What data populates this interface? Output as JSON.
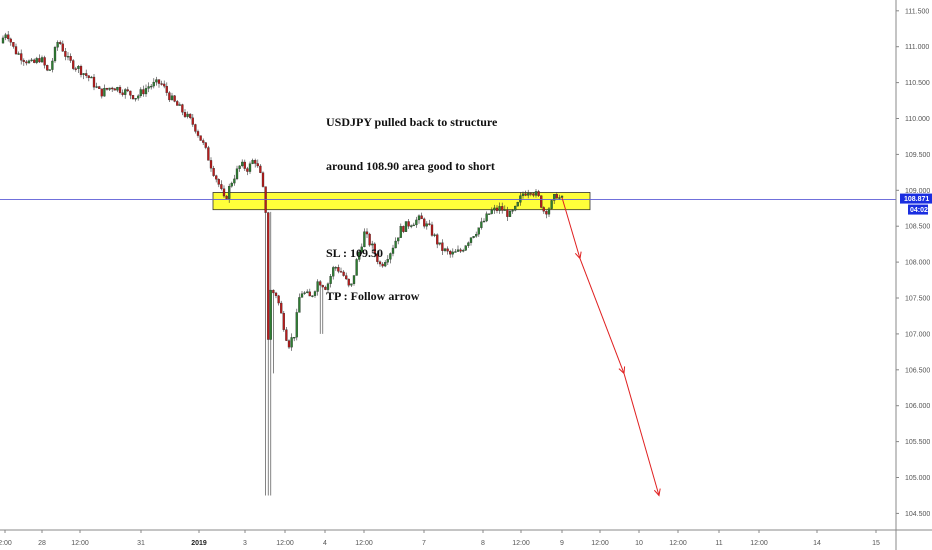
{
  "chart_data": {
    "type": "candlestick",
    "symbol": "USDJPY",
    "y_ticks": [
      "111.500",
      "111.000",
      "110.500",
      "110.000",
      "109.500",
      "109.000",
      "108.500",
      "108.000",
      "107.500",
      "107.000",
      "106.500",
      "106.000",
      "105.500",
      "105.000",
      "104.500"
    ],
    "ylim": [
      104.45,
      111.56
    ],
    "x_ticks": [
      {
        "label": "2:00",
        "bold": false
      },
      {
        "label": "28",
        "bold": false
      },
      {
        "label": "12:00",
        "bold": false
      },
      {
        "label": "31",
        "bold": false
      },
      {
        "label": "2019",
        "bold": true
      },
      {
        "label": "3",
        "bold": false
      },
      {
        "label": "12:00",
        "bold": false
      },
      {
        "label": "4",
        "bold": false
      },
      {
        "label": "12:00",
        "bold": false
      },
      {
        "label": "7",
        "bold": false
      },
      {
        "label": "8",
        "bold": false
      },
      {
        "label": "12:00",
        "bold": false
      },
      {
        "label": "9",
        "bold": false
      },
      {
        "label": "12:00",
        "bold": false
      },
      {
        "label": "10",
        "bold": false
      },
      {
        "label": "12:00",
        "bold": false
      },
      {
        "label": "11",
        "bold": false
      },
      {
        "label": "12:00",
        "bold": false
      },
      {
        "label": "14",
        "bold": false
      },
      {
        "label": "15",
        "bold": false
      }
    ],
    "current_price": {
      "value": 108.871,
      "label": "108.871",
      "countdown": "04:02"
    },
    "zone": {
      "low": 108.73,
      "high": 108.97
    },
    "approx_path": [
      {
        "t": 0,
        "p": 111.05
      },
      {
        "t": 6,
        "p": 111.22
      },
      {
        "t": 14,
        "p": 110.95
      },
      {
        "t": 22,
        "p": 110.85
      },
      {
        "t": 32,
        "p": 110.75
      },
      {
        "t": 40,
        "p": 110.85
      },
      {
        "t": 48,
        "p": 110.62
      },
      {
        "t": 58,
        "p": 111.1
      },
      {
        "t": 68,
        "p": 110.8
      },
      {
        "t": 78,
        "p": 110.7
      },
      {
        "t": 90,
        "p": 110.55
      },
      {
        "t": 100,
        "p": 110.35
      },
      {
        "t": 112,
        "p": 110.45
      },
      {
        "t": 124,
        "p": 110.38
      },
      {
        "t": 136,
        "p": 110.3
      },
      {
        "t": 148,
        "p": 110.45
      },
      {
        "t": 160,
        "p": 110.5
      },
      {
        "t": 172,
        "p": 110.25
      },
      {
        "t": 182,
        "p": 110.1
      },
      {
        "t": 194,
        "p": 109.9
      },
      {
        "t": 204,
        "p": 109.6
      },
      {
        "t": 212,
        "p": 109.3
      },
      {
        "t": 218,
        "p": 109.1
      },
      {
        "t": 224,
        "p": 108.85
      },
      {
        "t": 232,
        "p": 109.15
      },
      {
        "t": 240,
        "p": 109.35
      },
      {
        "t": 248,
        "p": 109.3
      },
      {
        "t": 254,
        "p": 109.45
      },
      {
        "t": 260,
        "p": 109.2
      },
      {
        "t": 264,
        "p": 108.9
      },
      {
        "t": 266,
        "p": 108.6
      },
      {
        "t": 267,
        "p": 106.7
      },
      {
        "t": 270,
        "p": 107.6
      },
      {
        "t": 276,
        "p": 107.55
      },
      {
        "t": 282,
        "p": 107.2
      },
      {
        "t": 288,
        "p": 106.85
      },
      {
        "t": 294,
        "p": 107.0
      },
      {
        "t": 300,
        "p": 107.6
      },
      {
        "t": 310,
        "p": 107.5
      },
      {
        "t": 318,
        "p": 107.75
      },
      {
        "t": 326,
        "p": 107.65
      },
      {
        "t": 334,
        "p": 107.95
      },
      {
        "t": 342,
        "p": 107.85
      },
      {
        "t": 350,
        "p": 107.6
      },
      {
        "t": 356,
        "p": 108.0
      },
      {
        "t": 364,
        "p": 108.4
      },
      {
        "t": 372,
        "p": 108.2
      },
      {
        "t": 380,
        "p": 107.95
      },
      {
        "t": 390,
        "p": 108.15
      },
      {
        "t": 400,
        "p": 108.45
      },
      {
        "t": 410,
        "p": 108.55
      },
      {
        "t": 420,
        "p": 108.6
      },
      {
        "t": 430,
        "p": 108.45
      },
      {
        "t": 440,
        "p": 108.2
      },
      {
        "t": 450,
        "p": 108.1
      },
      {
        "t": 460,
        "p": 108.15
      },
      {
        "t": 470,
        "p": 108.35
      },
      {
        "t": 480,
        "p": 108.5
      },
      {
        "t": 490,
        "p": 108.7
      },
      {
        "t": 500,
        "p": 108.75
      },
      {
        "t": 510,
        "p": 108.65
      },
      {
        "t": 516,
        "p": 108.75
      },
      {
        "t": 522,
        "p": 108.95
      },
      {
        "t": 530,
        "p": 109.02
      },
      {
        "t": 538,
        "p": 108.9
      },
      {
        "t": 544,
        "p": 108.7
      },
      {
        "t": 550,
        "p": 108.78
      },
      {
        "t": 556,
        "p": 108.95
      },
      {
        "t": 560,
        "p": 108.87
      }
    ],
    "arrow_path": [
      {
        "t": 560,
        "p": 108.9
      },
      {
        "t": 578,
        "p": 108.05
      },
      {
        "t": 622,
        "p": 106.45
      },
      {
        "t": 657,
        "p": 104.75
      }
    ]
  },
  "annotation": {
    "line1": "USDJPY pulled back to structure",
    "line2": "around 108.90 area good to short",
    "line3": "",
    "line4": "SL : 109.50",
    "line5": "TP : Follow arrow"
  },
  "colors": {
    "up": "#2e7d32",
    "down": "#b71c1c",
    "wick": "#333333",
    "zone_fill": "#ffff3a",
    "zone_border": "#333333",
    "price_line": "#5b5bd6",
    "badge": "#1a2ee0",
    "arrow": "#e02020"
  }
}
